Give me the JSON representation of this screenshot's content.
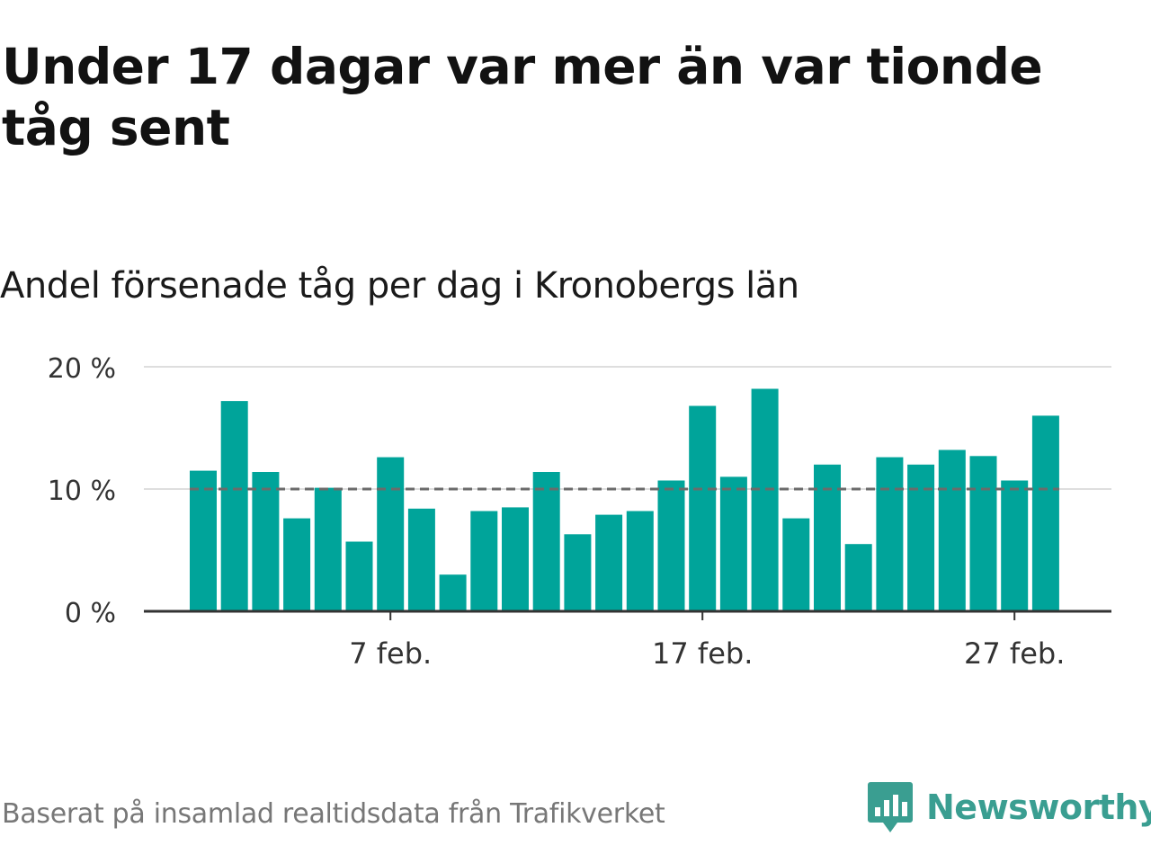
{
  "header": {
    "title": "Under 17 dagar var mer än var tionde tåg sent",
    "subtitle": "Andel försenade tåg per dag i Kronobergs län"
  },
  "footer": {
    "source": "Baserat på insamlad realtidsdata från Trafikverket",
    "brand": "Newsworthy",
    "brand_icon": "newsworthy-logo-icon"
  },
  "colors": {
    "bar": "#00a49a",
    "reference_line": "#6b6b6b",
    "grid": "#dedede",
    "axis": "#333333",
    "brand": "#3a9e91"
  },
  "chart_data": {
    "type": "bar",
    "title": "",
    "xlabel": "",
    "ylabel": "",
    "x": [
      "1 feb.",
      "2 feb.",
      "3 feb.",
      "4 feb.",
      "5 feb.",
      "6 feb.",
      "7 feb.",
      "8 feb.",
      "9 feb.",
      "10 feb.",
      "11 feb.",
      "12 feb.",
      "13 feb.",
      "14 feb.",
      "15 feb.",
      "16 feb.",
      "17 feb.",
      "18 feb.",
      "19 feb.",
      "20 feb.",
      "21 feb.",
      "22 feb.",
      "23 feb.",
      "24 feb.",
      "25 feb.",
      "26 feb.",
      "27 feb.",
      "28 feb."
    ],
    "values": [
      11.5,
      17.2,
      11.4,
      7.6,
      10.1,
      5.7,
      12.6,
      8.4,
      3.0,
      8.2,
      8.5,
      11.4,
      6.3,
      7.9,
      8.2,
      10.7,
      16.8,
      11.0,
      18.2,
      7.6,
      12.0,
      5.5,
      12.6,
      12.0,
      13.2,
      12.7,
      10.7,
      16.0
    ],
    "unit": "%",
    "ylim": [
      0,
      20
    ],
    "yticks": [
      0,
      10,
      20
    ],
    "ytick_labels": [
      "0 %",
      "10 %",
      "20 %"
    ],
    "xtick_positions": [
      "7 feb.",
      "17 feb.",
      "27 feb."
    ],
    "xtick_labels": [
      "7 feb.",
      "17 feb.",
      "27 feb."
    ],
    "reference_line": {
      "value": 10,
      "style": "dashed"
    },
    "grid": true,
    "legend": "none"
  }
}
